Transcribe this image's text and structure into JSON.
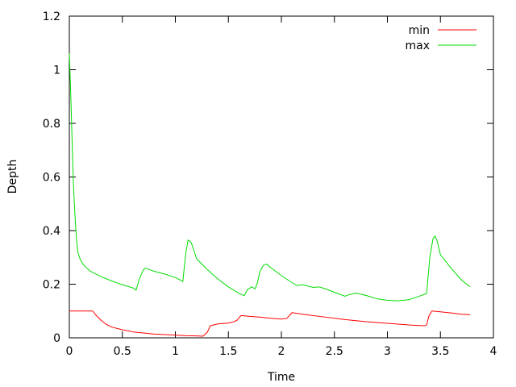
{
  "chart_data": {
    "type": "line",
    "title": "",
    "xlabel": "Time",
    "ylabel": "Depth",
    "xlim": [
      0,
      4
    ],
    "ylim": [
      0,
      1.2
    ],
    "xticks": [
      {
        "value": 0,
        "label": "0"
      },
      {
        "value": 0.5,
        "label": "0.5"
      },
      {
        "value": 1,
        "label": "1"
      },
      {
        "value": 1.5,
        "label": "1.5"
      },
      {
        "value": 2,
        "label": "2"
      },
      {
        "value": 2.5,
        "label": "2.5"
      },
      {
        "value": 3,
        "label": "3"
      },
      {
        "value": 3.5,
        "label": "3.5"
      },
      {
        "value": 4,
        "label": "4"
      }
    ],
    "yticks": [
      {
        "value": 0,
        "label": "0"
      },
      {
        "value": 0.2,
        "label": "0.2"
      },
      {
        "value": 0.4,
        "label": "0.4"
      },
      {
        "value": 0.6,
        "label": "0.6"
      },
      {
        "value": 0.8,
        "label": "0.8"
      },
      {
        "value": 1,
        "label": "1"
      },
      {
        "value": 1.2,
        "label": "1.2"
      }
    ],
    "grid": false,
    "legend_position": "top-right",
    "series": [
      {
        "name": "min",
        "color": "#ff0000",
        "x": [
          0,
          0.1,
          0.2,
          0.22,
          0.25,
          0.3,
          0.35,
          0.4,
          0.5,
          0.6,
          0.7,
          0.8,
          0.9,
          1.0,
          1.1,
          1.2,
          1.26,
          1.3,
          1.33,
          1.4,
          1.5,
          1.55,
          1.58,
          1.6,
          1.62,
          1.7,
          1.8,
          1.9,
          2.0,
          2.05,
          2.08,
          2.1,
          2.2,
          2.4,
          2.6,
          2.8,
          3.0,
          3.2,
          3.35,
          3.37,
          3.39,
          3.42,
          3.5,
          3.6,
          3.7,
          3.78
        ],
        "y": [
          0.1,
          0.1,
          0.1,
          0.1,
          0.085,
          0.065,
          0.05,
          0.04,
          0.03,
          0.022,
          0.018,
          0.014,
          0.012,
          0.01,
          0.008,
          0.007,
          0.006,
          0.02,
          0.045,
          0.052,
          0.055,
          0.06,
          0.065,
          0.075,
          0.083,
          0.08,
          0.077,
          0.073,
          0.07,
          0.072,
          0.085,
          0.094,
          0.088,
          0.078,
          0.068,
          0.06,
          0.054,
          0.048,
          0.045,
          0.048,
          0.08,
          0.1,
          0.097,
          0.093,
          0.088,
          0.086
        ]
      },
      {
        "name": "max",
        "color": "#00dd00",
        "x": [
          0,
          0.01,
          0.02,
          0.03,
          0.04,
          0.05,
          0.06,
          0.07,
          0.08,
          0.1,
          0.12,
          0.15,
          0.2,
          0.3,
          0.4,
          0.5,
          0.6,
          0.63,
          0.66,
          0.7,
          0.72,
          0.8,
          0.9,
          1.0,
          1.05,
          1.07,
          1.1,
          1.12,
          1.15,
          1.18,
          1.2,
          1.3,
          1.4,
          1.5,
          1.6,
          1.65,
          1.68,
          1.72,
          1.75,
          1.77,
          1.8,
          1.83,
          1.86,
          1.9,
          2.0,
          2.1,
          2.15,
          2.2,
          2.3,
          2.35,
          2.4,
          2.5,
          2.6,
          2.63,
          2.7,
          2.8,
          2.9,
          3.0,
          3.1,
          3.2,
          3.3,
          3.37,
          3.4,
          3.43,
          3.45,
          3.47,
          3.5,
          3.6,
          3.7,
          3.78
        ],
        "y": [
          1.06,
          0.95,
          0.82,
          0.68,
          0.56,
          0.48,
          0.41,
          0.36,
          0.32,
          0.295,
          0.28,
          0.265,
          0.248,
          0.228,
          0.212,
          0.198,
          0.186,
          0.178,
          0.22,
          0.255,
          0.26,
          0.248,
          0.238,
          0.225,
          0.215,
          0.21,
          0.32,
          0.365,
          0.355,
          0.32,
          0.295,
          0.255,
          0.22,
          0.19,
          0.166,
          0.157,
          0.18,
          0.19,
          0.183,
          0.2,
          0.25,
          0.27,
          0.275,
          0.262,
          0.232,
          0.206,
          0.195,
          0.198,
          0.188,
          0.19,
          0.185,
          0.17,
          0.155,
          0.16,
          0.167,
          0.158,
          0.146,
          0.14,
          0.138,
          0.142,
          0.155,
          0.165,
          0.3,
          0.37,
          0.38,
          0.36,
          0.31,
          0.26,
          0.215,
          0.19
        ]
      }
    ]
  }
}
